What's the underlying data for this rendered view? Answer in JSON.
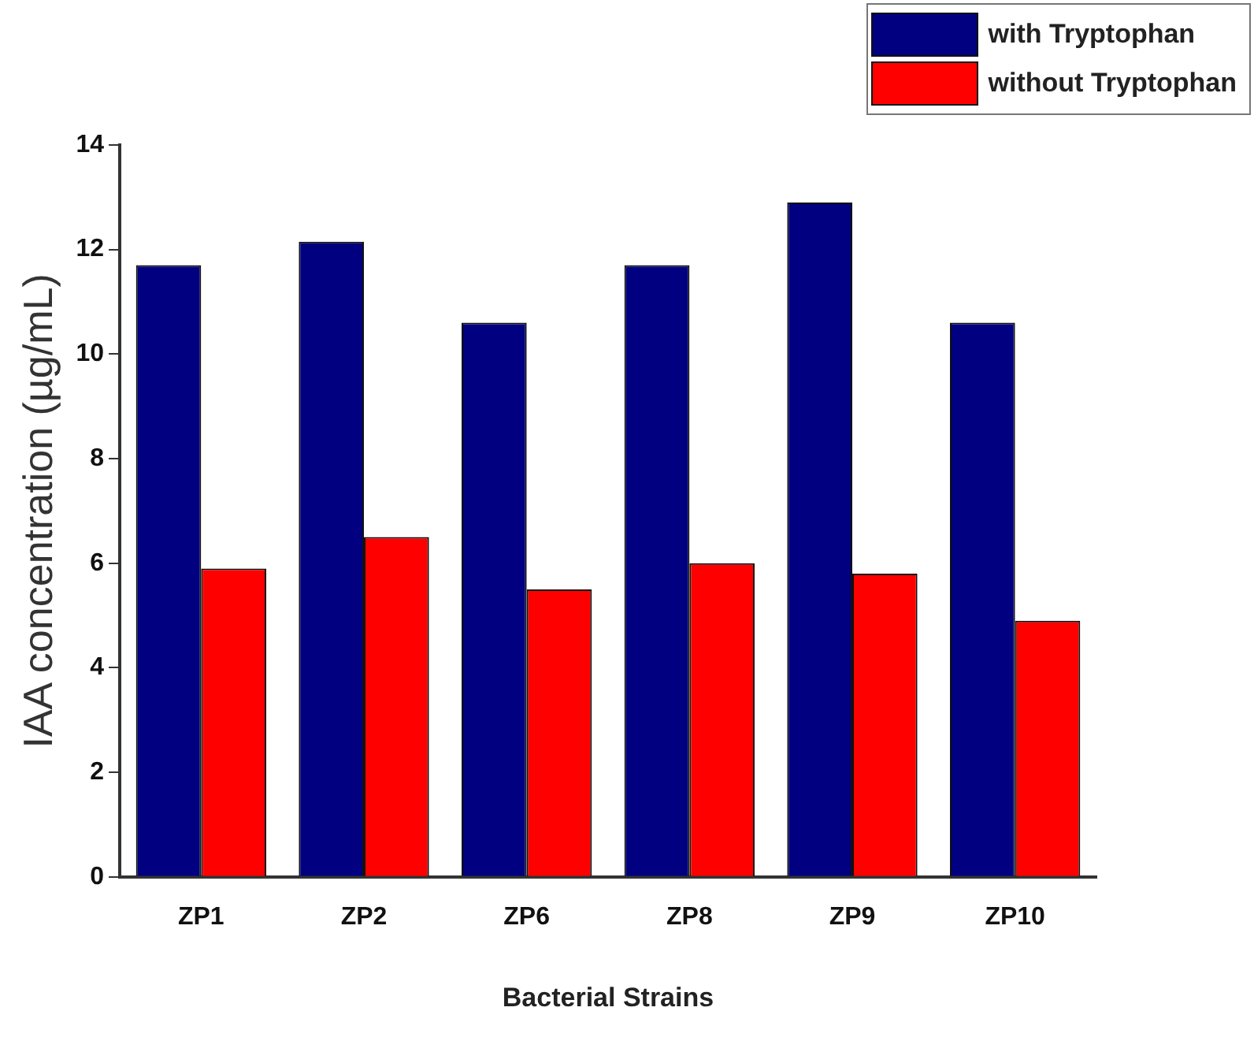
{
  "chart_data": {
    "type": "bar",
    "xlabel": "Bacterial Strains",
    "ylabel": "IAA concentration (µg/mL)",
    "categories": [
      "ZP1",
      "ZP2",
      "ZP6",
      "ZP8",
      "ZP9",
      "ZP10"
    ],
    "series": [
      {
        "name": "with Tryptophan",
        "color": "#000080",
        "values": [
          11.7,
          12.15,
          10.6,
          11.7,
          12.9,
          10.6
        ]
      },
      {
        "name": "without Tryptophan",
        "color": "#ff0000",
        "values": [
          5.9,
          6.5,
          5.5,
          6.0,
          5.8,
          4.9
        ]
      }
    ],
    "ylim": [
      0,
      14
    ],
    "yticks": [
      0,
      2,
      4,
      6,
      8,
      10,
      12,
      14
    ],
    "grid": false,
    "legend": "top right"
  }
}
